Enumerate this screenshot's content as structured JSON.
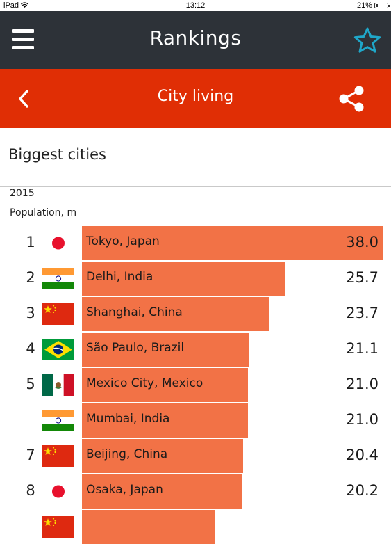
{
  "status": {
    "device": "iPad",
    "time": "13:12",
    "battery": "21%"
  },
  "header": {
    "title": "Rankings",
    "menu_icon": "hamburger-menu-icon",
    "favorite_icon": "star-outline-icon",
    "accent": "#1fa7c9",
    "bg": "#2d3238"
  },
  "subheader": {
    "title": "City living",
    "back_icon": "chevron-left-icon",
    "share_icon": "share-icon",
    "bg": "#e02e05"
  },
  "ranking": {
    "title": "Biggest cities",
    "year": "2015",
    "unit": "Population, m",
    "bar_color": "#f27246",
    "max_value": 38.0,
    "rows": [
      {
        "rank": "1",
        "flag": "japan",
        "city": "Tokyo, Japan",
        "value": 38.0,
        "label": "38.0"
      },
      {
        "rank": "2",
        "flag": "india",
        "city": "Delhi, India",
        "value": 25.7,
        "label": "25.7"
      },
      {
        "rank": "3",
        "flag": "china",
        "city": "Shanghai, China",
        "value": 23.7,
        "label": "23.7"
      },
      {
        "rank": "4",
        "flag": "brazil",
        "city": "São Paulo, Brazil",
        "value": 21.1,
        "label": "21.1"
      },
      {
        "rank": "5",
        "flag": "mexico",
        "city": "Mexico City, Mexico",
        "value": 21.0,
        "label": "21.0"
      },
      {
        "rank": "",
        "flag": "india",
        "city": "Mumbai, India",
        "value": 21.0,
        "label": "21.0"
      },
      {
        "rank": "7",
        "flag": "china",
        "city": "Beijing, China",
        "value": 20.4,
        "label": "20.4"
      },
      {
        "rank": "8",
        "flag": "japan",
        "city": "Osaka, Japan",
        "value": 20.2,
        "label": "20.2"
      },
      {
        "rank": "",
        "flag": "china",
        "city": "",
        "value": 16.8,
        "label": ""
      }
    ]
  }
}
